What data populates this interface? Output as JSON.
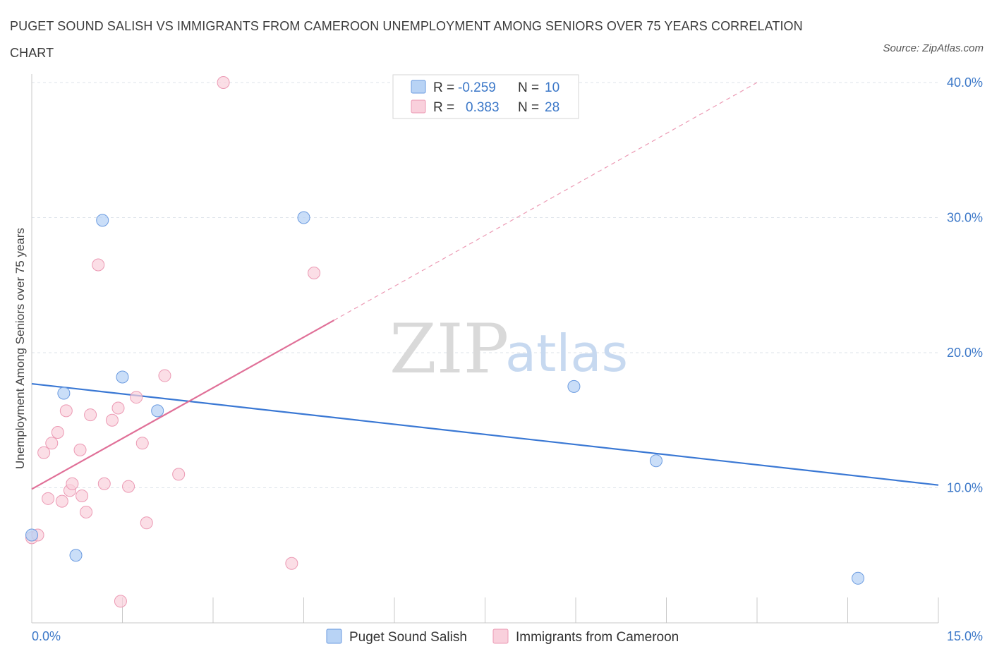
{
  "title": "PUGET SOUND SALISH VS IMMIGRANTS FROM CAMEROON UNEMPLOYMENT AMONG SENIORS OVER 75 YEARS CORRELATION CHART",
  "source": "Source: ZipAtlas.com",
  "watermark": {
    "zip": "ZIP",
    "atlas": "atlas"
  },
  "colors": {
    "blue": "#3a78d4",
    "blue_fill": "#b8d3f5",
    "blue_stroke": "#6b9be0",
    "pink": "#e07098",
    "pink_fill": "#f9d0dc",
    "pink_stroke": "#ec9ab4",
    "grid": "#dde3ea",
    "tick_text": "#3c78c8"
  },
  "legend": {
    "rows": [
      {
        "r_label": "R =",
        "r_value": "-0.259",
        "n_label": "N =",
        "n_value": "10"
      },
      {
        "r_label": "R =",
        "r_value": "0.383",
        "n_label": "N =",
        "n_value": "28"
      }
    ]
  },
  "chart_data": {
    "type": "scatter",
    "title": "Puget Sound Salish vs Immigrants from Cameroon Unemployment Among Seniors over 75 years Correlation Chart",
    "xlabel": "",
    "ylabel": "Unemployment Among Seniors over 75 years",
    "xlim": [
      0,
      15
    ],
    "ylim": [
      0,
      40
    ],
    "x_tick_labels": [
      "0.0%",
      "15.0%"
    ],
    "y_ticks": [
      10,
      20,
      30,
      40
    ],
    "y_tick_labels": [
      "10.0%",
      "20.0%",
      "30.0%",
      "40.0%"
    ],
    "grid": true,
    "series": [
      {
        "name": "Puget Sound Salish",
        "R": -0.259,
        "N": 10,
        "points": [
          [
            0.0,
            6.5
          ],
          [
            0.53,
            17.0
          ],
          [
            0.73,
            5.0
          ],
          [
            1.17,
            29.8
          ],
          [
            1.5,
            18.2
          ],
          [
            2.08,
            15.7
          ],
          [
            4.5,
            30.0
          ],
          [
            8.97,
            17.5
          ],
          [
            10.33,
            12.0
          ],
          [
            13.67,
            3.3
          ]
        ],
        "trend": {
          "x": [
            0.0,
            15.0
          ],
          "y": [
            17.7,
            10.2
          ],
          "dashed_extension": false
        }
      },
      {
        "name": "Immigrants from Cameroon",
        "R": 0.383,
        "N": 28,
        "points": [
          [
            0.0,
            6.3
          ],
          [
            0.1,
            6.5
          ],
          [
            0.2,
            12.6
          ],
          [
            0.27,
            9.2
          ],
          [
            0.33,
            13.3
          ],
          [
            0.43,
            14.1
          ],
          [
            0.5,
            9.0
          ],
          [
            0.57,
            15.7
          ],
          [
            0.63,
            9.8
          ],
          [
            0.67,
            10.3
          ],
          [
            0.8,
            12.8
          ],
          [
            0.83,
            9.4
          ],
          [
            0.9,
            8.2
          ],
          [
            0.97,
            15.4
          ],
          [
            1.1,
            26.5
          ],
          [
            1.2,
            10.3
          ],
          [
            1.33,
            15.0
          ],
          [
            1.43,
            15.9
          ],
          [
            1.47,
            1.6
          ],
          [
            1.6,
            10.1
          ],
          [
            1.73,
            16.7
          ],
          [
            1.83,
            13.3
          ],
          [
            1.9,
            7.4
          ],
          [
            2.2,
            18.3
          ],
          [
            2.43,
            11.0
          ],
          [
            3.17,
            40.0
          ],
          [
            4.3,
            4.4
          ],
          [
            4.67,
            25.9
          ]
        ],
        "trend": {
          "x": [
            0.0,
            5.0
          ],
          "y": [
            9.9,
            22.4
          ],
          "dashed_extension": {
            "x": [
              5.0,
              12.0
            ],
            "y": [
              22.4,
              40.0
            ]
          }
        }
      }
    ]
  }
}
